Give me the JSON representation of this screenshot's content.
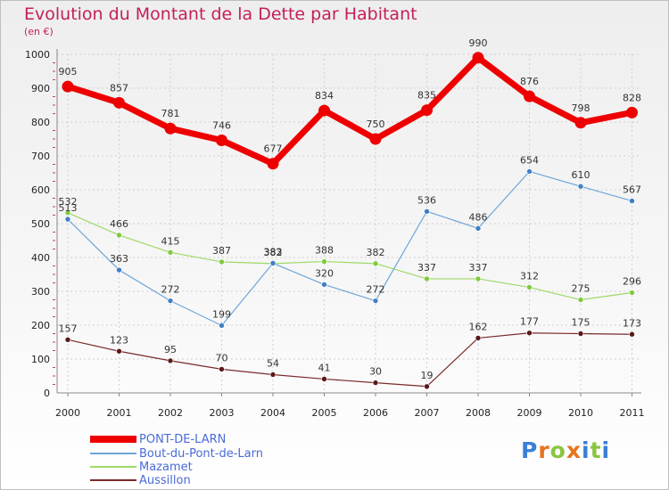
{
  "title": "Evolution du Montant de la Dette par Habitant",
  "subtitle": "(en €)",
  "logo": {
    "text": "Proxiti",
    "letter_colors": [
      "#3a7fd6",
      "#e8731c",
      "#8bc53f",
      "#e8731c",
      "#3a7fd6",
      "#8bc53f",
      "#3a7fd6"
    ]
  },
  "chart_data": {
    "type": "line",
    "title": "Evolution du Montant de la Dette par Habitant",
    "ylabel": "(en €)",
    "xlabel": "",
    "x": [
      "2000",
      "2001",
      "2002",
      "2003",
      "2004",
      "2005",
      "2006",
      "2007",
      "2008",
      "2009",
      "2010",
      "2011"
    ],
    "ylim": [
      0,
      1000
    ],
    "yticks": [
      "0",
      "100",
      "200",
      "300",
      "400",
      "500",
      "600",
      "700",
      "800",
      "900",
      "1000"
    ],
    "grid": true,
    "legend_position": "bottom-left",
    "series": [
      {
        "name": "PONT-DE-LARN",
        "color": "#ee0000",
        "values": [
          905,
          857,
          781,
          746,
          677,
          834,
          750,
          835,
          990,
          876,
          798,
          828
        ]
      },
      {
        "name": "Bout-du-Pont-de-Larn",
        "color": "#6ea6d9",
        "values": [
          513,
          363,
          272,
          199,
          383,
          320,
          272,
          536,
          486,
          654,
          610,
          567
        ]
      },
      {
        "name": "Mazamet",
        "color": "#9ed966",
        "values": [
          532,
          466,
          415,
          387,
          382,
          388,
          382,
          337,
          337,
          312,
          275,
          296
        ]
      },
      {
        "name": "Aussillon",
        "color": "#7a2a2a",
        "values": [
          157,
          123,
          95,
          70,
          54,
          41,
          30,
          19,
          162,
          177,
          175,
          173
        ]
      }
    ]
  }
}
